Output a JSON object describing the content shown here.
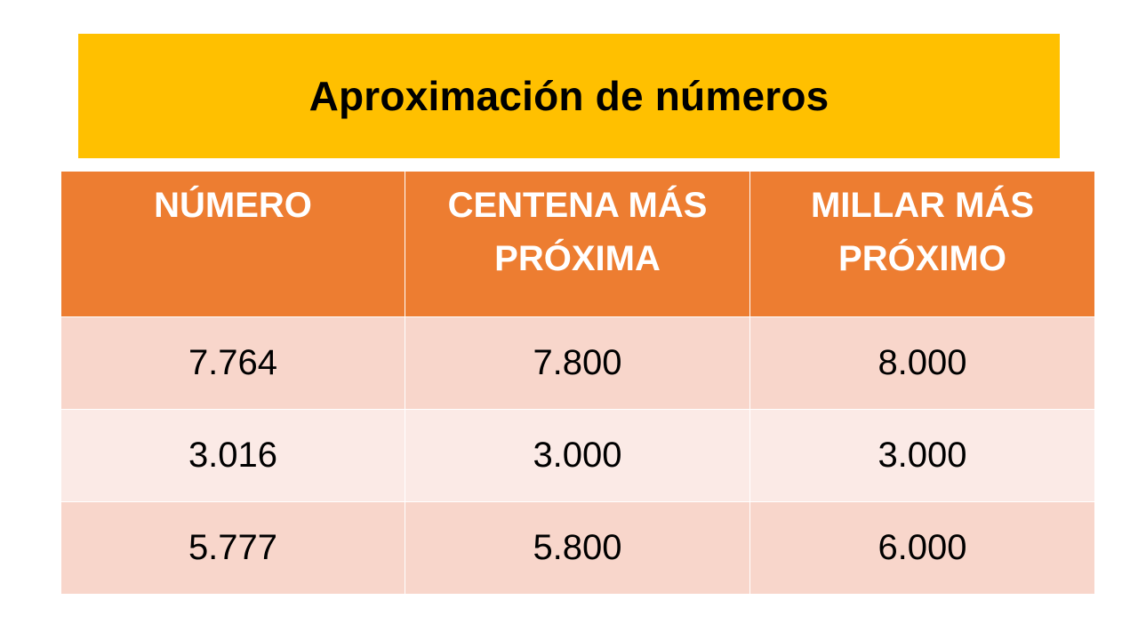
{
  "title": "Aproximación de números",
  "table": {
    "headers": [
      "NÚMERO",
      "CENTENA MÁS PRÓXIMA",
      "MILLAR MÁS PRÓXIMO"
    ],
    "rows": [
      [
        "7.764",
        "7.800",
        "8.000"
      ],
      [
        "3.016",
        "3.000",
        "3.000"
      ],
      [
        "5.777",
        "5.800",
        "6.000"
      ]
    ]
  },
  "colors": {
    "banner": "#FFC000",
    "header": "#ED7D31",
    "row_dark": "#F8D6CB",
    "row_light": "#FBEAE6"
  }
}
